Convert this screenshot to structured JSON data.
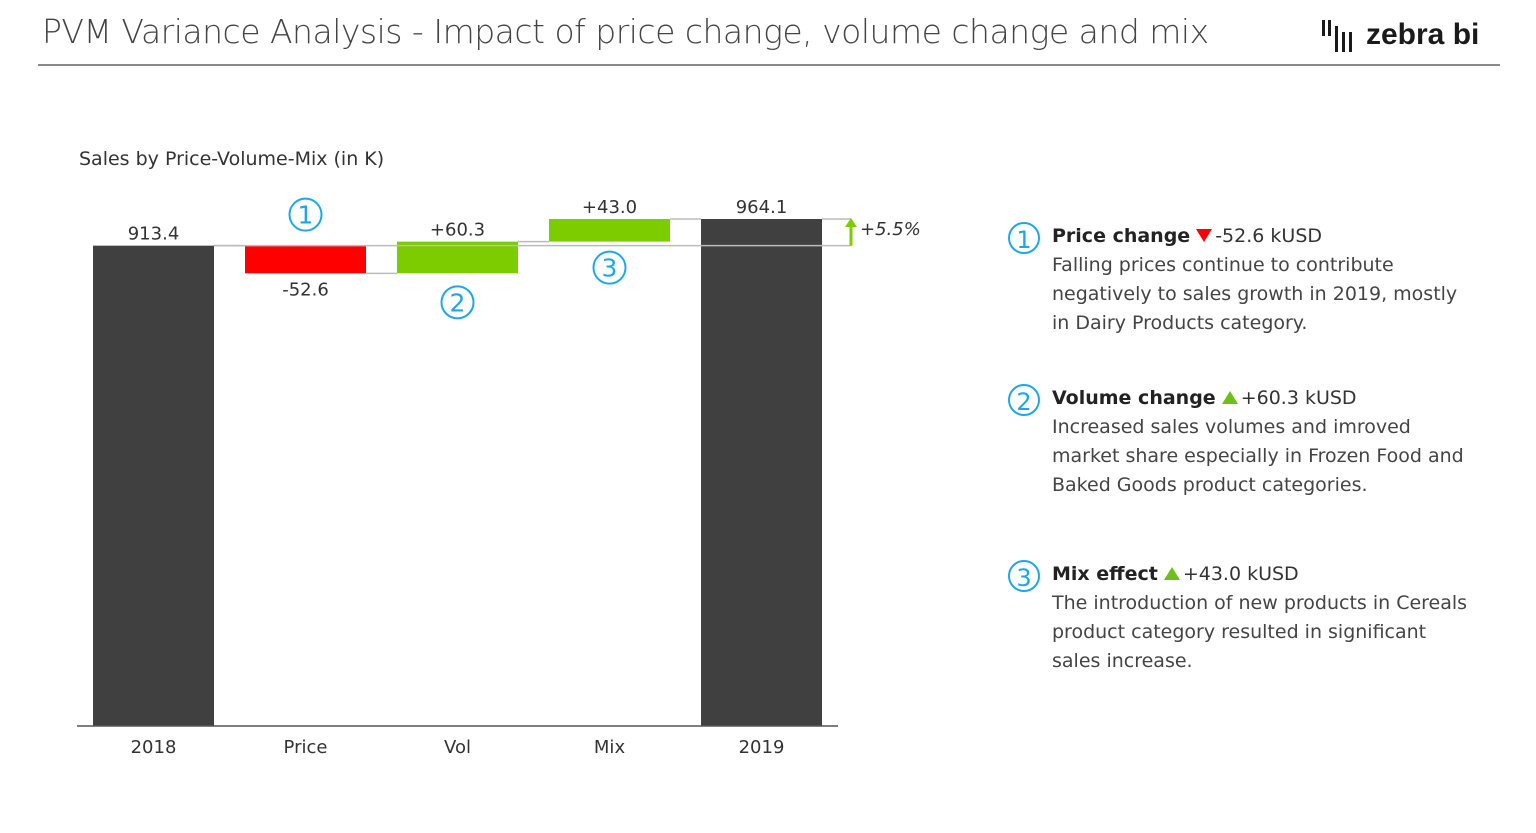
{
  "header": {
    "title": "PVM Variance Analysis - Impact of price change, volume change and mix",
    "logo_text": "zebra bi"
  },
  "chart_data": {
    "type": "waterfall",
    "title": "Sales by Price-Volume-Mix (in K)",
    "categories": [
      "2018",
      "Price",
      "Vol",
      "Mix",
      "2019"
    ],
    "values": [
      913.4,
      -52.6,
      60.3,
      43.0,
      964.1
    ],
    "kinds": [
      "total",
      "delta",
      "delta",
      "delta",
      "total"
    ],
    "labels": [
      "913.4",
      "-52.6",
      "+60.3",
      "+43.0",
      "964.1"
    ],
    "markers": [
      "",
      "1",
      "2",
      "3",
      ""
    ],
    "variance_label": "+5.5%",
    "colors": {
      "total": "#404040",
      "negative": "#ff0000",
      "positive": "#7ccc00",
      "marker": "#1ea7e8"
    }
  },
  "notes": [
    {
      "num": "1",
      "title": "Price change",
      "direction": "down",
      "value": "-52.6 kUSD",
      "text": "Falling prices continue to contribute negatively to sales growth in 2019, mostly in Dairy Products category."
    },
    {
      "num": "2",
      "title": "Volume change",
      "direction": "up",
      "value": "+60.3 kUSD",
      "text": "Increased sales volumes and imroved market share especially in Frozen Food and Baked Goods product categories."
    },
    {
      "num": "3",
      "title": "Mix effect",
      "direction": "up",
      "value": "+43.0 kUSD",
      "text": "The introduction of new products in Cereals product category resulted in significant sales increase."
    }
  ]
}
